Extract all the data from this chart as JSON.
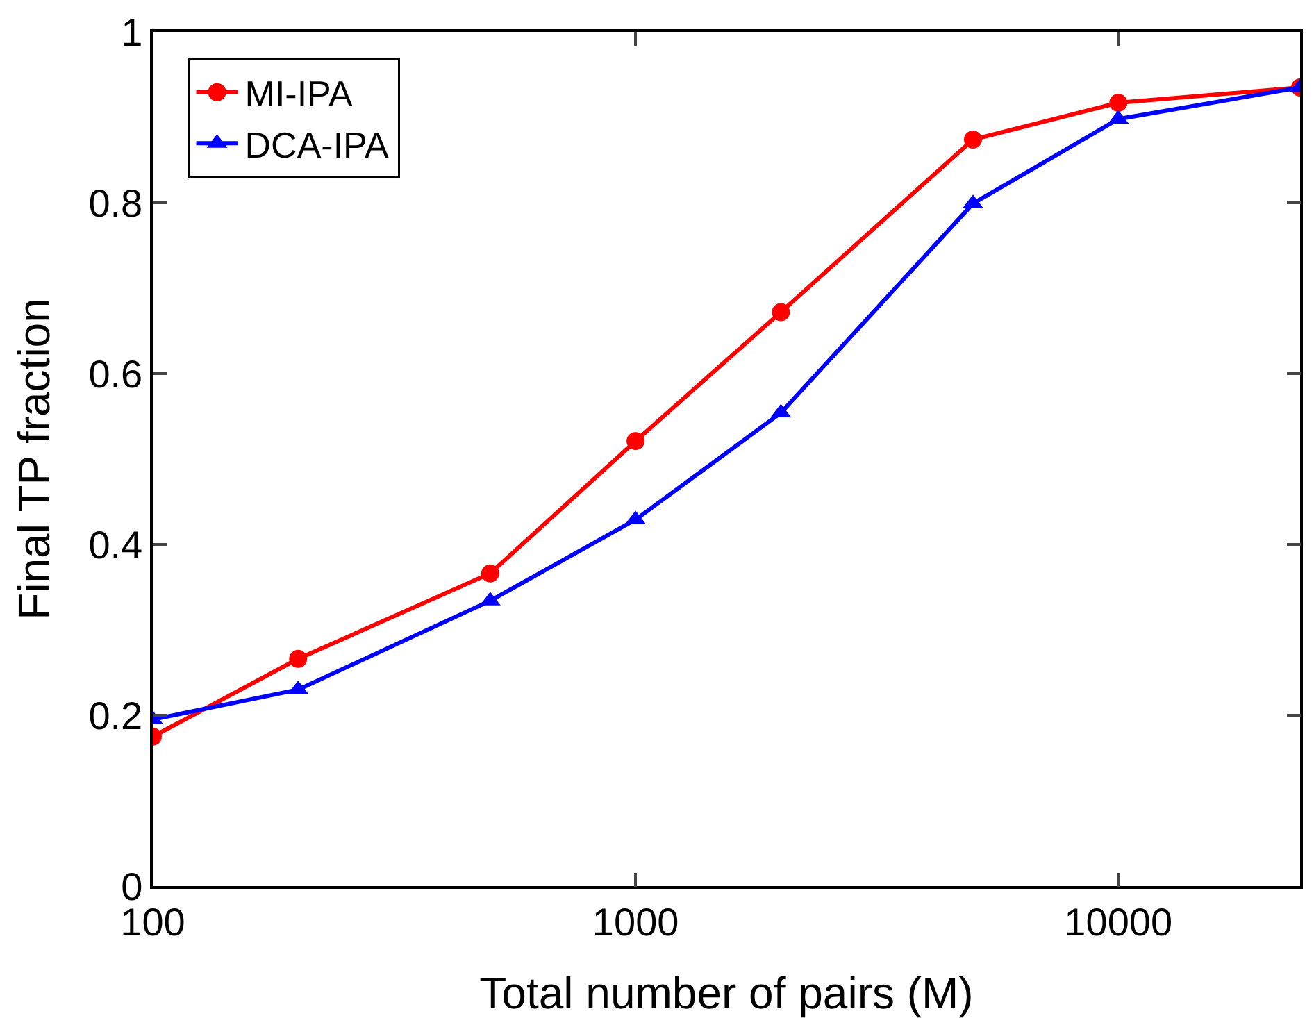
{
  "chart_data": {
    "type": "line",
    "xlabel": "Total number of pairs (M)",
    "ylabel": "Final TP fraction",
    "log": "x",
    "x": [
      100,
      200,
      500,
      1000,
      2000,
      5000,
      10000,
      23800
    ],
    "xlim": [
      100,
      23800
    ],
    "xticks": [
      100,
      1000,
      10000
    ],
    "ylim": [
      0,
      1
    ],
    "yticks": [
      0,
      0.2,
      0.4,
      0.6,
      0.8,
      1
    ],
    "grid": false,
    "legend": "top left",
    "line_style": "solid",
    "series": [
      {
        "name": "MI-IPA",
        "color": "#ff0000",
        "marker": "circle",
        "values": [
          0.175,
          0.266,
          0.366,
          0.521,
          0.672,
          0.874,
          0.917,
          0.935
        ]
      },
      {
        "name": "DCA-IPA",
        "color": "#0000ff",
        "marker": "triangle",
        "values": [
          0.195,
          0.23,
          0.334,
          0.429,
          0.554,
          0.799,
          0.898,
          0.935
        ]
      }
    ]
  }
}
